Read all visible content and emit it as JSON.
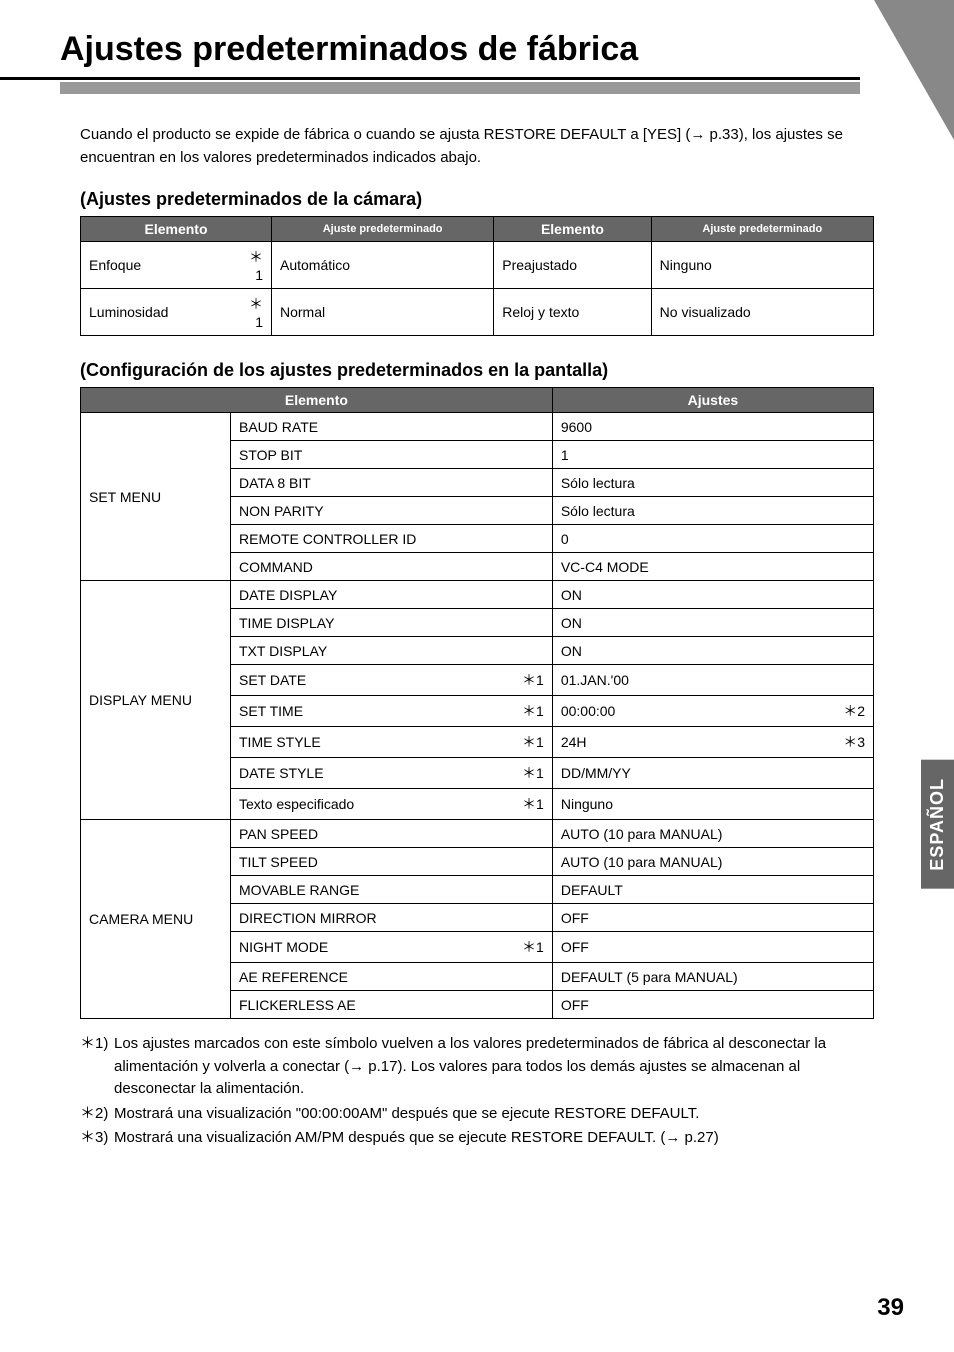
{
  "page": {
    "title": "Ajustes predeterminados de fábrica",
    "intro": "Cuando el producto se expide de fábrica o cuando se ajusta RESTORE DEFAULT a [YES] (→ p.33), los ajustes se encuentran en los valores predeterminados indicados abajo.",
    "side_tab": "ESPAÑOL",
    "page_number": "39"
  },
  "section1": {
    "heading": "(Ajustes predeterminados de la cámara)",
    "headers": {
      "elemento1": "Elemento",
      "ajuste1": "Ajuste predeterminado",
      "elemento2": "Elemento",
      "ajuste2": "Ajuste predeterminado"
    },
    "rows": [
      {
        "name1": "Enfoque",
        "star1": "＊1",
        "val1": "Automático",
        "name2": "Preajustado",
        "val2": "Ninguno"
      },
      {
        "name1": "Luminosidad",
        "star1": "＊1",
        "val1": "Normal",
        "name2": "Reloj y texto",
        "val2": "No visualizado"
      }
    ]
  },
  "section2": {
    "heading": "(Configuración de los ajustes predeterminados en la pantalla)",
    "headers": {
      "elemento": "Elemento",
      "ajustes": "Ajustes"
    },
    "groups": [
      {
        "group": "SET MENU",
        "rows": [
          {
            "item": "BAUD RATE",
            "star": "",
            "value": "9600",
            "vstar": ""
          },
          {
            "item": "STOP BIT",
            "star": "",
            "value": "1",
            "vstar": ""
          },
          {
            "item": "DATA 8 BIT",
            "star": "",
            "value": "Sólo lectura",
            "vstar": ""
          },
          {
            "item": "NON PARITY",
            "star": "",
            "value": "Sólo lectura",
            "vstar": ""
          },
          {
            "item": "REMOTE CONTROLLER ID",
            "star": "",
            "value": "0",
            "vstar": ""
          },
          {
            "item": "COMMAND",
            "star": "",
            "value": "VC-C4 MODE",
            "vstar": ""
          }
        ]
      },
      {
        "group": "DISPLAY MENU",
        "rows": [
          {
            "item": "DATE DISPLAY",
            "star": "",
            "value": "ON",
            "vstar": ""
          },
          {
            "item": "TIME DISPLAY",
            "star": "",
            "value": "ON",
            "vstar": ""
          },
          {
            "item": "TXT DISPLAY",
            "star": "",
            "value": "ON",
            "vstar": ""
          },
          {
            "item": "SET DATE",
            "star": "＊1",
            "value": "01.JAN.'00",
            "vstar": ""
          },
          {
            "item": "SET TIME",
            "star": "＊1",
            "value": "00:00:00",
            "vstar": "＊2"
          },
          {
            "item": "TIME STYLE",
            "star": "＊1",
            "value": "24H",
            "vstar": "＊3"
          },
          {
            "item": "DATE STYLE",
            "star": "＊1",
            "value": "DD/MM/YY",
            "vstar": ""
          },
          {
            "item": "Texto especificado",
            "star": "＊1",
            "value": "Ninguno",
            "vstar": ""
          }
        ]
      },
      {
        "group": "CAMERA MENU",
        "rows": [
          {
            "item": "PAN SPEED",
            "star": "",
            "value": "AUTO (10 para MANUAL)",
            "vstar": ""
          },
          {
            "item": "TILT SPEED",
            "star": "",
            "value": "AUTO (10 para MANUAL)",
            "vstar": ""
          },
          {
            "item": "MOVABLE RANGE",
            "star": "",
            "value": "DEFAULT",
            "vstar": ""
          },
          {
            "item": "DIRECTION MIRROR",
            "star": "",
            "value": "OFF",
            "vstar": ""
          },
          {
            "item": "NIGHT MODE",
            "star": "＊1",
            "value": "OFF",
            "vstar": ""
          },
          {
            "item": "AE REFERENCE",
            "star": "",
            "value": "DEFAULT (5 para MANUAL)",
            "vstar": ""
          },
          {
            "item": "FLICKERLESS AE",
            "star": "",
            "value": "OFF",
            "vstar": ""
          }
        ]
      }
    ]
  },
  "footnotes": [
    {
      "marker": "＊1)",
      "text": "Los ajustes marcados con este símbolo vuelven a los valores predeterminados de fábrica al desconectar la alimentación y volverla a conectar (→ p.17). Los valores para todos los demás ajustes se almacenan al desconectar la alimentación."
    },
    {
      "marker": "＊2)",
      "text": "Mostrará una visualización \"00:00:00AM\" después que se ejecute RESTORE DEFAULT."
    },
    {
      "marker": "＊3)",
      "text": "Mostrará una visualización AM/PM después que se ejecute RESTORE DEFAULT. (→ p.27)"
    }
  ],
  "colors": {
    "header_bg": "#666666",
    "header_fg": "#ffffff",
    "underline": "#999999",
    "triangle": "#888888"
  }
}
